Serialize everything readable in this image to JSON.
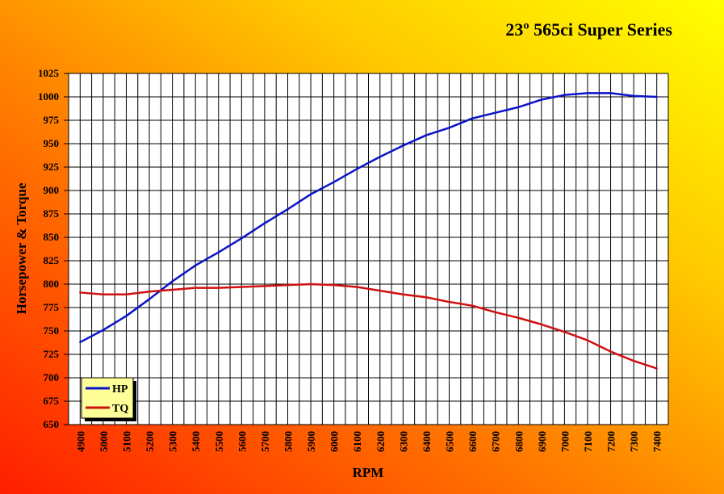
{
  "chart_data": {
    "type": "line",
    "title": "23º 565ci Super Series",
    "xlabel": "RPM",
    "ylabel": "Horsepower & Torque",
    "ylim": [
      650,
      1025
    ],
    "yticks": [
      650,
      675,
      700,
      725,
      750,
      775,
      800,
      825,
      850,
      875,
      900,
      925,
      950,
      975,
      1000,
      1025
    ],
    "grid": true,
    "legend_position": "bottom-left",
    "x": [
      4900,
      5000,
      5100,
      5200,
      5300,
      5400,
      5500,
      5600,
      5700,
      5800,
      5900,
      6000,
      6100,
      6200,
      6300,
      6400,
      6500,
      6600,
      6700,
      6800,
      6900,
      7000,
      7100,
      7200,
      7300,
      7400
    ],
    "series": [
      {
        "name": "HP",
        "color": "#0a14c8",
        "values": [
          738,
          751,
          766,
          784,
          803,
          820,
          834,
          849,
          865,
          880,
          896,
          909,
          923,
          936,
          948,
          959,
          967,
          977,
          983,
          989,
          997,
          1002,
          1004,
          1004,
          1001,
          1000
        ]
      },
      {
        "name": "TQ",
        "color": "#d01010",
        "values": [
          791,
          789,
          789,
          792,
          794,
          796,
          796,
          797,
          798,
          799,
          800,
          799,
          797,
          793,
          789,
          786,
          781,
          777,
          770,
          764,
          757,
          749,
          740,
          728,
          718,
          710
        ]
      }
    ]
  }
}
